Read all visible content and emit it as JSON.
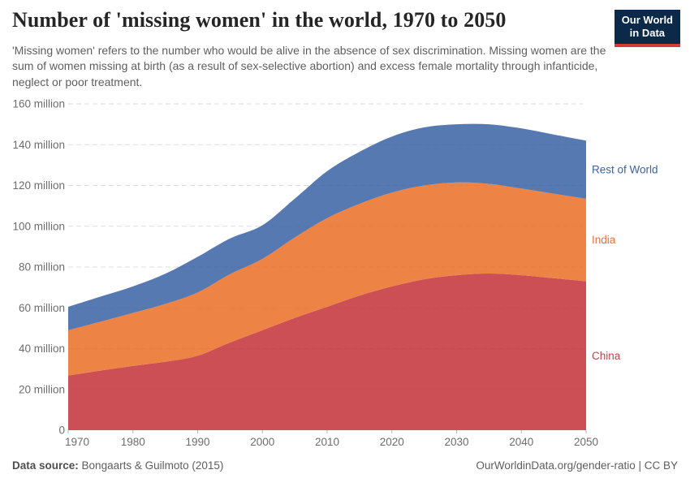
{
  "header": {
    "title": "Number of 'missing women' in the world, 1970 to 2050",
    "subtitle": "'Missing women' refers to the number who would be alive in the absence of sex discrimination. Missing women are the sum of women missing at birth (as a result of sex-selective abortion) and excess female mortality through infanticide, neglect or poor treatment.",
    "logo": {
      "line1": "Our World",
      "line2": "in Data",
      "bg": "#0b2949",
      "stripe": "#d73a3a"
    }
  },
  "chart_data": {
    "type": "area",
    "stacked": true,
    "title": "Number of 'missing women' in the world, 1970 to 2050",
    "unit": "million",
    "x": [
      1970,
      1975,
      1980,
      1985,
      1990,
      1995,
      2000,
      2005,
      2010,
      2015,
      2020,
      2025,
      2030,
      2035,
      2040,
      2045,
      2050
    ],
    "series": [
      {
        "name": "China",
        "fill": "#c23037",
        "label_color": "#c0434d",
        "values": [
          26.8,
          29.2,
          31.5,
          33.5,
          36.5,
          43.0,
          49.0,
          55.0,
          60.5,
          66.0,
          70.5,
          74.0,
          76.0,
          76.8,
          76.0,
          74.5,
          73.0
        ]
      },
      {
        "name": "India",
        "fill": "#eb6d26",
        "label_color": "#e8703a",
        "values": [
          22.2,
          24.0,
          26.0,
          28.4,
          31.0,
          33.5,
          35.0,
          39.5,
          43.5,
          45.0,
          46.0,
          46.0,
          45.5,
          44.0,
          42.5,
          41.5,
          40.5
        ]
      },
      {
        "name": "Rest of World",
        "fill": "#3a62a3",
        "label_color": "#3d639f",
        "values": [
          11.5,
          12.3,
          13.0,
          14.8,
          17.5,
          17.5,
          16.5,
          19.0,
          23.0,
          25.5,
          27.5,
          28.5,
          28.5,
          29.2,
          29.5,
          29.0,
          28.5
        ]
      }
    ],
    "ylim": [
      0,
      160
    ],
    "yticks": [
      {
        "v": 0,
        "label": "0"
      },
      {
        "v": 20,
        "label": "20 million"
      },
      {
        "v": 40,
        "label": "40 million"
      },
      {
        "v": 60,
        "label": "60 million"
      },
      {
        "v": 80,
        "label": "80 million"
      },
      {
        "v": 100,
        "label": "100 million"
      },
      {
        "v": 120,
        "label": "120 million"
      },
      {
        "v": 140,
        "label": "140 million"
      },
      {
        "v": 160,
        "label": "160 million"
      }
    ],
    "xticks": [
      1970,
      1980,
      1990,
      2000,
      2010,
      2020,
      2030,
      2040,
      2050
    ],
    "grid": "dashed",
    "grid_color": "#dddddd",
    "tick_label_color": "#6c6c6c",
    "legend_position": "right"
  },
  "footer": {
    "datasource_label": "Data source:",
    "datasource_value": "Bongaarts & Guilmoto (2015)",
    "credit": "OurWorldinData.org/gender-ratio | CC BY"
  }
}
